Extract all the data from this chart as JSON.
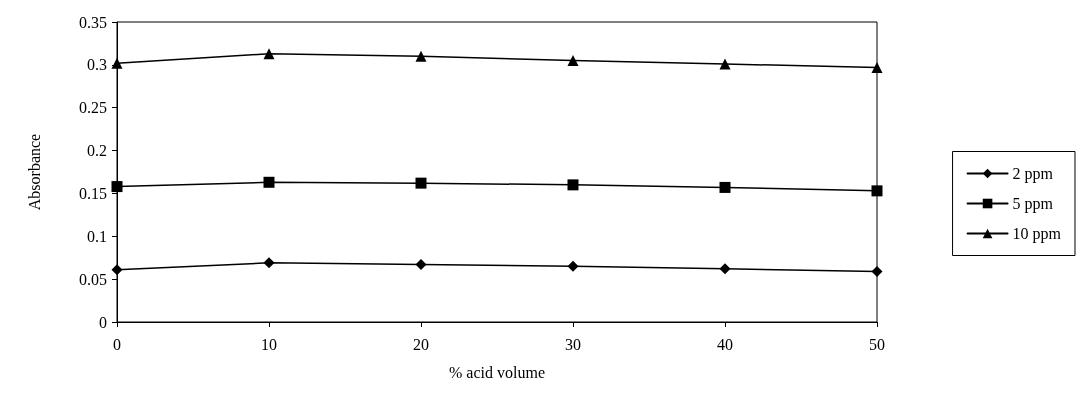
{
  "chart_data": {
    "type": "line",
    "xlabel": "% acid volume",
    "ylabel": "Absorbance",
    "x": [
      0,
      10,
      20,
      30,
      40,
      50
    ],
    "series": [
      {
        "name": "2 ppm",
        "color": "#000000",
        "marker": "diamond",
        "values": [
          0.061,
          0.069,
          0.067,
          0.065,
          0.062,
          0.059
        ]
      },
      {
        "name": "5 ppm",
        "color": "#000000",
        "marker": "square",
        "values": [
          0.158,
          0.163,
          0.162,
          0.16,
          0.157,
          0.153
        ]
      },
      {
        "name": "10 ppm",
        "color": "#000000",
        "marker": "triangle",
        "values": [
          0.302,
          0.313,
          0.31,
          0.305,
          0.301,
          0.297
        ]
      }
    ],
    "xlim": [
      0,
      50
    ],
    "xticks": [
      0,
      10,
      20,
      30,
      40,
      50
    ],
    "ylim": [
      0,
      0.35
    ],
    "yticks": [
      0,
      0.05,
      0.1,
      0.15,
      0.2,
      0.25,
      0.3,
      0.35
    ],
    "grid": false,
    "legend": "right",
    "line_style": "solid"
  }
}
